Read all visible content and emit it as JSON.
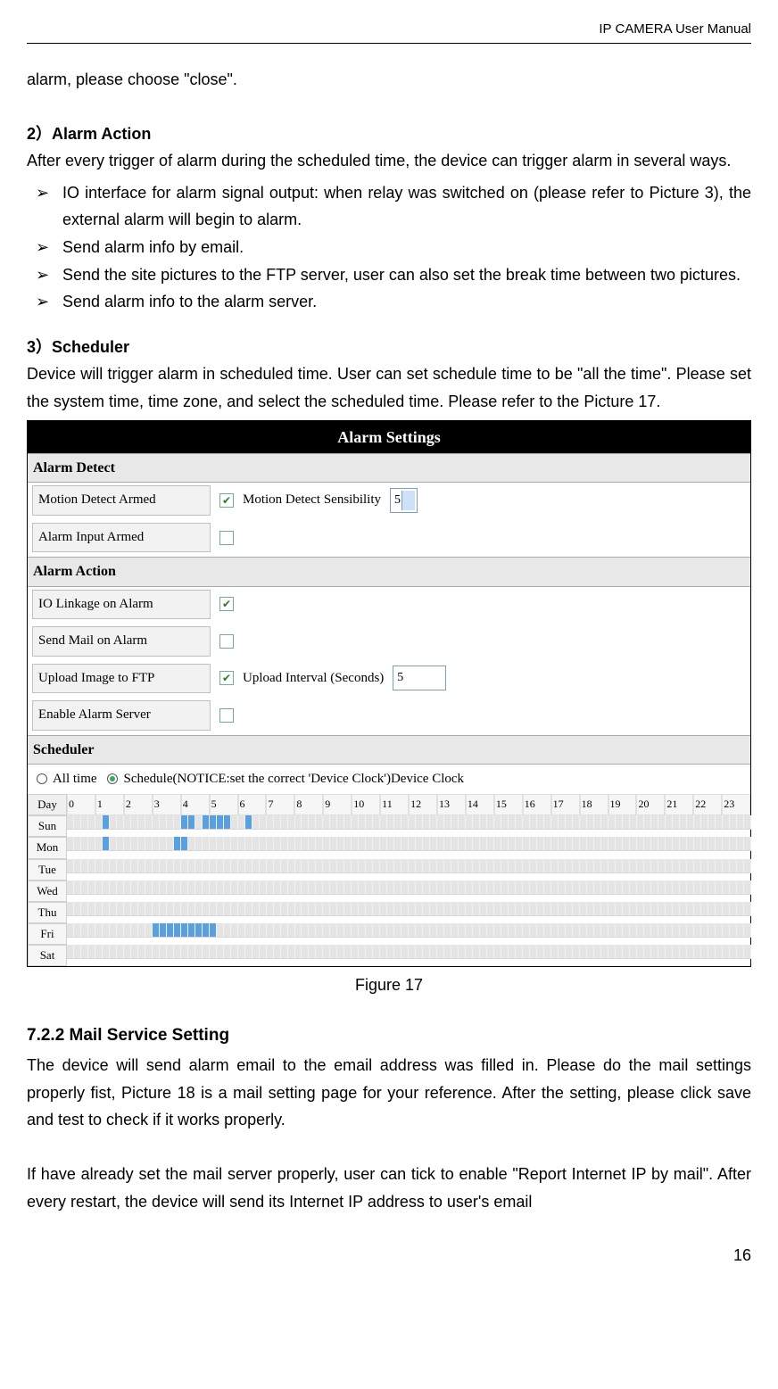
{
  "header": "IP CAMERA User Manual",
  "intro_continued": "alarm, please choose \"close\".",
  "sec2": {
    "heading": "2）Alarm Action",
    "text": "After every trigger of alarm during the scheduled time, the device can trigger alarm in several ways.",
    "bullets": [
      "IO interface for alarm signal output: when relay was switched on (please refer to Picture 3), the external alarm will begin to alarm.",
      "Send alarm info by email.",
      "Send the site pictures to the FTP server, user can also set the break time between two pictures.",
      "Send alarm info to the alarm server."
    ]
  },
  "sec3": {
    "heading": "3）Scheduler",
    "text": "Device will trigger alarm in scheduled time. User can set schedule time to be \"all the time\". Please set the system time, time zone, and select the scheduled time. Please refer to the Picture 17."
  },
  "figure": {
    "title": "Alarm Settings",
    "sections": {
      "detect": "Alarm Detect",
      "action": "Alarm Action",
      "scheduler": "Scheduler"
    },
    "detect_rows": {
      "motion_label": "Motion Detect Armed",
      "motion_checked": true,
      "motion_sens_label": "Motion Detect Sensibility",
      "motion_sens_value": "5",
      "input_label": "Alarm Input Armed",
      "input_checked": false
    },
    "action_rows": {
      "io_label": "IO Linkage on Alarm",
      "io_checked": true,
      "mail_label": "Send Mail on Alarm",
      "mail_checked": false,
      "ftp_label": "Upload Image to FTP",
      "ftp_checked": true,
      "ftp_interval_label": "Upload Interval (Seconds)",
      "ftp_interval_value": "5",
      "server_label": "Enable Alarm Server",
      "server_checked": false
    },
    "scheduler_opts": {
      "alltime_label": "All time",
      "schedule_label": "Schedule(NOTICE:set the correct 'Device Clock')Device Clock",
      "selected": "schedule"
    },
    "grid": {
      "days": [
        "Sun",
        "Mon",
        "Tue",
        "Wed",
        "Thu",
        "Fri",
        "Sat"
      ],
      "hours": [
        "0",
        "1",
        "2",
        "3",
        "4",
        "5",
        "6",
        "7",
        "8",
        "9",
        "10",
        "11",
        "12",
        "13",
        "14",
        "15",
        "16",
        "17",
        "18",
        "19",
        "20",
        "21",
        "22",
        "23"
      ],
      "subdiv": 4,
      "on_cells": {
        "Sun": [
          5,
          16,
          17,
          19,
          20,
          21,
          22,
          25
        ],
        "Mon": [
          5,
          15,
          16
        ],
        "Tue": [],
        "Wed": [],
        "Thu": [],
        "Fri": [
          12,
          13,
          14,
          15,
          16,
          17,
          18,
          19,
          20
        ],
        "Sat": []
      }
    },
    "colors": {
      "on": "#5aa0e0",
      "off": "#e4e4e4",
      "header_bg": "#000000",
      "header_fg": "#ffffff"
    }
  },
  "caption": "Figure 17",
  "sec722": {
    "heading": "7.2.2  Mail Service Setting",
    "p1": "The device will send alarm email to the email address was filled in. Please do the mail settings properly fist, Picture 18 is a mail setting page for your reference. After the setting, please click save and test to check if it works properly.",
    "p2": "If have already set the mail server properly, user can tick to enable \"Report Internet IP by mail\". After every restart, the device will send its Internet IP address to user's email"
  },
  "page_num": "16"
}
